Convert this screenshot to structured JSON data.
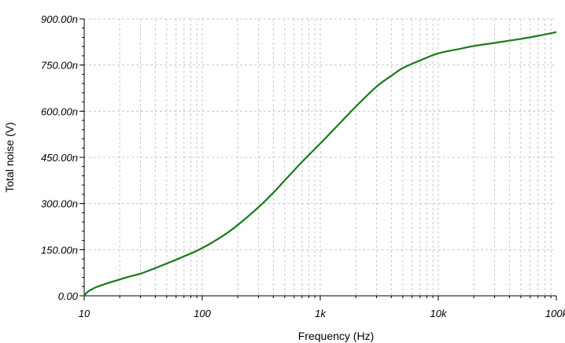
{
  "chart_data": {
    "type": "line",
    "xlabel": "Frequency (Hz)",
    "ylabel": "Total noise (V)",
    "x_scale": "log",
    "xlim": [
      10,
      100000
    ],
    "ylim": [
      0,
      9e-07
    ],
    "x_ticks": [
      {
        "value": 10,
        "label": "10"
      },
      {
        "value": 100,
        "label": "100"
      },
      {
        "value": 1000,
        "label": "1k"
      },
      {
        "value": 10000,
        "label": "10k"
      },
      {
        "value": 100000,
        "label": "100k"
      }
    ],
    "y_ticks": [
      {
        "value": 0,
        "label": "0.00"
      },
      {
        "value": 1.5e-07,
        "label": "150.00n"
      },
      {
        "value": 3e-07,
        "label": "300.00n"
      },
      {
        "value": 4.5e-07,
        "label": "450.00n"
      },
      {
        "value": 6e-07,
        "label": "600.00n"
      },
      {
        "value": 7.5e-07,
        "label": "750.00n"
      },
      {
        "value": 9e-07,
        "label": "900.00n"
      }
    ],
    "grid": true,
    "series": [
      {
        "color": "#1a7a1a",
        "x": [
          10,
          10.5,
          11,
          12,
          13,
          15,
          17,
          20,
          25,
          30,
          40,
          50,
          70,
          100,
          150,
          200,
          300,
          400,
          500,
          700,
          1000,
          1500,
          2000,
          3000,
          4000,
          5000,
          7000,
          10000,
          15000,
          20000,
          30000,
          50000,
          70000,
          100000
        ],
        "y": [
          0,
          1e-08,
          1.6e-08,
          2.4e-08,
          3e-08,
          3.8e-08,
          4.5e-08,
          5.3e-08,
          6.4e-08,
          7.2e-08,
          9e-08,
          1.05e-07,
          1.28e-07,
          1.55e-07,
          1.95e-07,
          2.3e-07,
          2.88e-07,
          3.35e-07,
          3.75e-07,
          4.35e-07,
          4.95e-07,
          5.65e-07,
          6.15e-07,
          6.8e-07,
          7.15e-07,
          7.4e-07,
          7.65e-07,
          7.88e-07,
          8.02e-07,
          8.12e-07,
          8.22e-07,
          8.35e-07,
          8.45e-07,
          8.57e-07
        ]
      }
    ]
  }
}
